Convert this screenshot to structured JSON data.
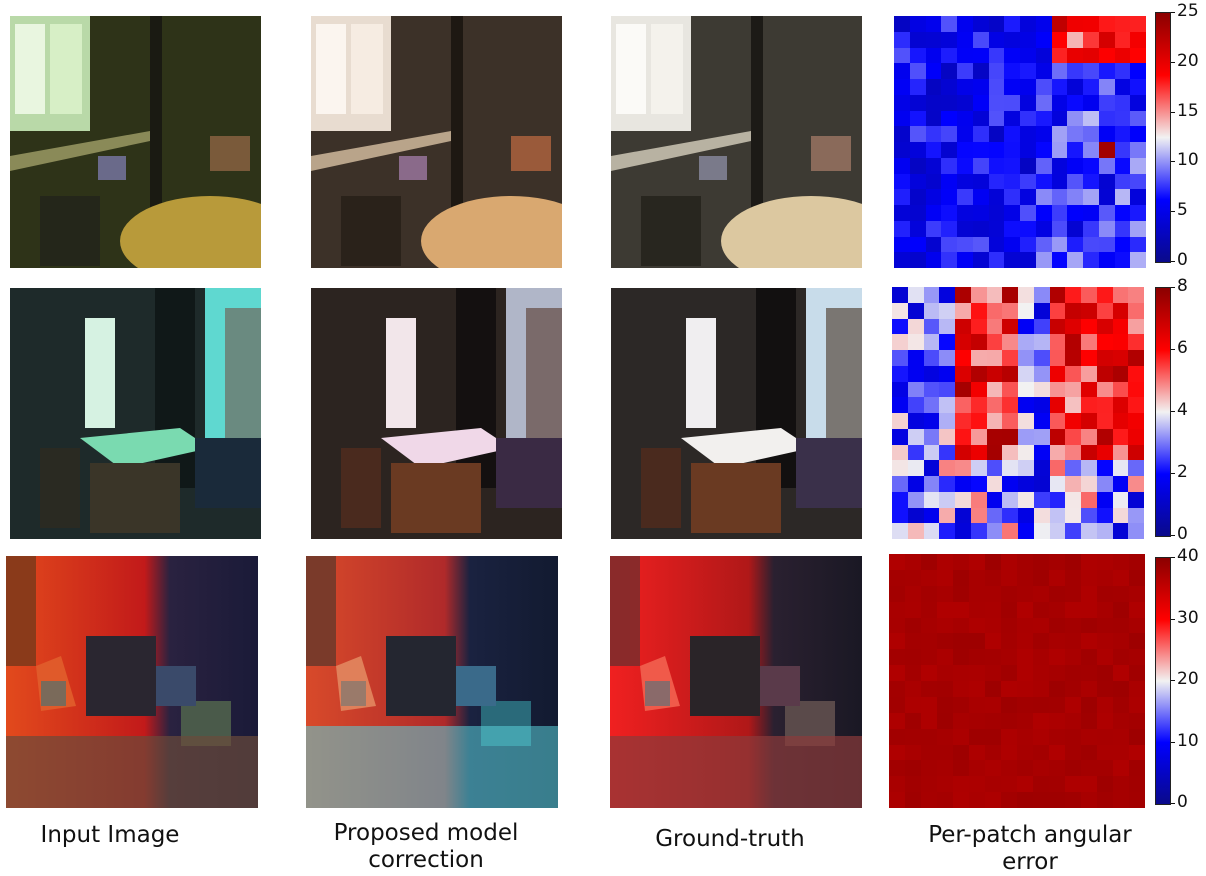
{
  "captions": {
    "input": "Input Image",
    "proposed": "Proposed model correction",
    "ground_truth": "Ground-truth",
    "error": "Per-patch angular error"
  },
  "rows": [
    {
      "scene": "lab-room-with-color-checker",
      "input_tint": "#3b4a1a",
      "proposed_tint": "#6b5a44",
      "gt_tint": "#6a6356",
      "colorbar_ticks": [
        "25",
        "20",
        "15",
        "10",
        "5",
        "0"
      ],
      "colorbar_max": 25
    },
    {
      "scene": "classroom-with-window",
      "input_tint": "#1f3a3a",
      "proposed_tint": "#3a2c26",
      "gt_tint": "#3a3330",
      "colorbar_ticks": [
        "8",
        "6",
        "4",
        "2",
        "0"
      ],
      "colorbar_max": 8
    },
    {
      "scene": "bedroom-with-color-checkers",
      "input_tint": "#5a2a1a",
      "proposed_tint": "#3a2a3a",
      "gt_tint": "#5a1a1a",
      "colorbar_ticks": [
        "40",
        "30",
        "20",
        "10",
        "0"
      ],
      "colorbar_max": 40
    }
  ],
  "colormap": {
    "low": "#0a0a8a",
    "mid": "#f2f2f2",
    "high": "#8b0000"
  }
}
